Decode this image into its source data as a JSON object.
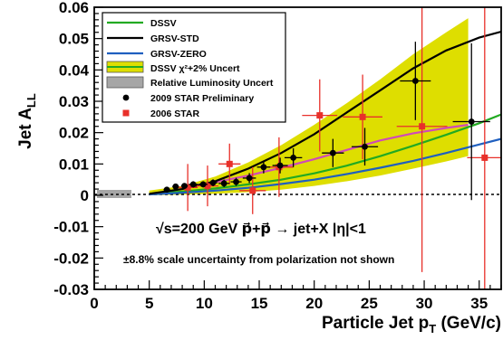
{
  "chart_data": {
    "type": "scatter",
    "ylabel": "Jet A",
    "ylabel_sub": "LL",
    "xlabel": "Particle Jet p",
    "xlabel_sub": "T",
    "xlabel_unit": " (GeV/c)",
    "xlim": [
      0,
      37
    ],
    "ylim": [
      -0.03,
      0.06
    ],
    "x_ticks": [
      0,
      5,
      10,
      15,
      20,
      25,
      30,
      35
    ],
    "y_ticks": [
      0.06,
      0.05,
      0.04,
      0.03,
      0.02,
      0.01,
      0,
      -0.01,
      -0.02,
      -0.03
    ],
    "y_tick_labels": [
      "0.06",
      "0.05",
      "0.04",
      "0.03",
      "0.02",
      "0.01",
      "0",
      "-0.01",
      "-0.02",
      "-0.03"
    ],
    "grid": false,
    "legend_position": "top-left",
    "legend": [
      {
        "label": "DSSV",
        "kind": "line",
        "color": "#22aa22"
      },
      {
        "label": "GRSV-STD",
        "kind": "line",
        "color": "#000000"
      },
      {
        "label": "GRSV-ZERO",
        "kind": "line",
        "color": "#1f5fbf"
      },
      {
        "label": "DSSV χ²+2% Uncert",
        "kind": "band",
        "color": "#dede00"
      },
      {
        "label": "Relative Luminosity Uncert",
        "kind": "box",
        "color": "#a6a6a6"
      },
      {
        "label": "2009 STAR Preliminary",
        "kind": "marker",
        "color": "#000000"
      },
      {
        "label": "2006 STAR",
        "kind": "square",
        "color": "#e8302a"
      }
    ],
    "annotation_main": "√s=200 GeV   p⃗+p⃗ → jet+X   |η|<1",
    "annotation_sub": "±8.8% scale uncertainty from polarization not shown",
    "series": [
      {
        "name": "DSSV",
        "kind": "line",
        "color": "#22aa22",
        "x": [
          5,
          8,
          11,
          14,
          17,
          20,
          23,
          26,
          29,
          32,
          35,
          37
        ],
        "y": [
          0.0005,
          0.0012,
          0.0022,
          0.0035,
          0.005,
          0.007,
          0.0095,
          0.0125,
          0.0158,
          0.0193,
          0.023,
          0.0258
        ]
      },
      {
        "name": "GRSV-STD",
        "kind": "line",
        "color": "#000000",
        "x": [
          5,
          8,
          11,
          14,
          17,
          20,
          23,
          26,
          29,
          32,
          35,
          37
        ],
        "y": [
          0.0005,
          0.002,
          0.0045,
          0.0085,
          0.0135,
          0.0195,
          0.0265,
          0.0335,
          0.0405,
          0.0462,
          0.0503,
          0.0522
        ]
      },
      {
        "name": "GRSV-ZERO",
        "kind": "line",
        "color": "#1f5fbf",
        "x": [
          5,
          8,
          11,
          14,
          17,
          20,
          23,
          26,
          29,
          32,
          35,
          37
        ],
        "y": [
          0.0003,
          0.0008,
          0.0015,
          0.0024,
          0.0036,
          0.005,
          0.0068,
          0.0088,
          0.011,
          0.0135,
          0.0162,
          0.018
        ]
      },
      {
        "name": "model-pink",
        "kind": "line",
        "color": "#d04ab8",
        "x": [
          8,
          11,
          14,
          17,
          20,
          23,
          26,
          29,
          32,
          34
        ],
        "y": [
          0.0025,
          0.0042,
          0.0063,
          0.0088,
          0.0115,
          0.0145,
          0.0175,
          0.0198,
          0.0215,
          0.0225
        ]
      },
      {
        "name": "DSSV χ²+2% Uncert",
        "kind": "band",
        "color": "#dede00",
        "x": [
          5,
          8,
          11,
          14,
          17,
          20,
          23,
          26,
          29,
          32,
          34
        ],
        "upper": [
          0.0015,
          0.003,
          0.006,
          0.0105,
          0.016,
          0.0225,
          0.0295,
          0.037,
          0.045,
          0.052,
          0.0565
        ],
        "lower": [
          0.0,
          0.0002,
          0.0005,
          0.001,
          0.0018,
          0.003,
          0.0045,
          0.0063,
          0.0085,
          0.0108,
          0.0125
        ]
      },
      {
        "name": "2009 STAR Preliminary",
        "kind": "points",
        "color": "#000000",
        "x": [
          6.6,
          7.4,
          8.2,
          9.0,
          9.9,
          10.8,
          11.8,
          12.9,
          14.1,
          15.4,
          16.9,
          18.1,
          21.7,
          24.6,
          29.2,
          34.3
        ],
        "y": [
          0.0018,
          0.0028,
          0.003,
          0.0035,
          0.0035,
          0.004,
          0.0038,
          0.0043,
          0.0055,
          0.009,
          0.0095,
          0.012,
          0.0135,
          0.0155,
          0.0365,
          0.0235
        ],
        "err": [
          0.0008,
          0.0008,
          0.0009,
          0.001,
          0.001,
          0.0011,
          0.0012,
          0.0013,
          0.0016,
          0.002,
          0.0025,
          0.003,
          0.0045,
          0.006,
          0.0125,
          0.025
        ],
        "xerr": [
          0.3,
          0.3,
          0.3,
          0.4,
          0.4,
          0.4,
          0.5,
          0.5,
          0.6,
          0.6,
          0.7,
          0.8,
          1.0,
          1.2,
          1.4,
          1.7
        ]
      },
      {
        "name": "2006 STAR",
        "kind": "points",
        "color": "#e8302a",
        "x": [
          8.5,
          10.3,
          12.3,
          14.4,
          16.8,
          20.5,
          24.4,
          29.8,
          35.5
        ],
        "y": [
          0.0025,
          0.003,
          0.01,
          0.0015,
          0.009,
          0.0255,
          0.025,
          0.022,
          0.012
        ],
        "err": [
          0.0075,
          0.0065,
          0.0065,
          0.0075,
          0.0095,
          0.0115,
          0.0135,
          0.0465,
          0.0505
        ],
        "xerr": [
          0.9,
          1.0,
          1.0,
          1.2,
          1.3,
          1.6,
          1.8,
          2.3,
          1.6
        ]
      }
    ]
  }
}
